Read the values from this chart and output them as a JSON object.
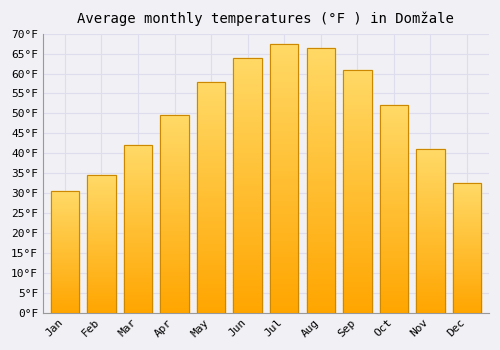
{
  "title": "Average monthly temperatures (°F ) in Domžale",
  "months": [
    "Jan",
    "Feb",
    "Mar",
    "Apr",
    "May",
    "Jun",
    "Jul",
    "Aug",
    "Sep",
    "Oct",
    "Nov",
    "Dec"
  ],
  "values": [
    30.5,
    34.5,
    42.0,
    49.5,
    58.0,
    64.0,
    67.5,
    66.5,
    61.0,
    52.0,
    41.0,
    32.5
  ],
  "bar_color_bottom": "#FFA500",
  "bar_color_top": "#FFD966",
  "bar_edge_color": "#CC8800",
  "background_color": "#F0F0F5",
  "plot_bg_color": "#F0F0F5",
  "grid_color": "#DDDDEE",
  "ylim": [
    0,
    70
  ],
  "ytick_step": 5,
  "title_fontsize": 10,
  "tick_fontsize": 8,
  "font_family": "monospace"
}
